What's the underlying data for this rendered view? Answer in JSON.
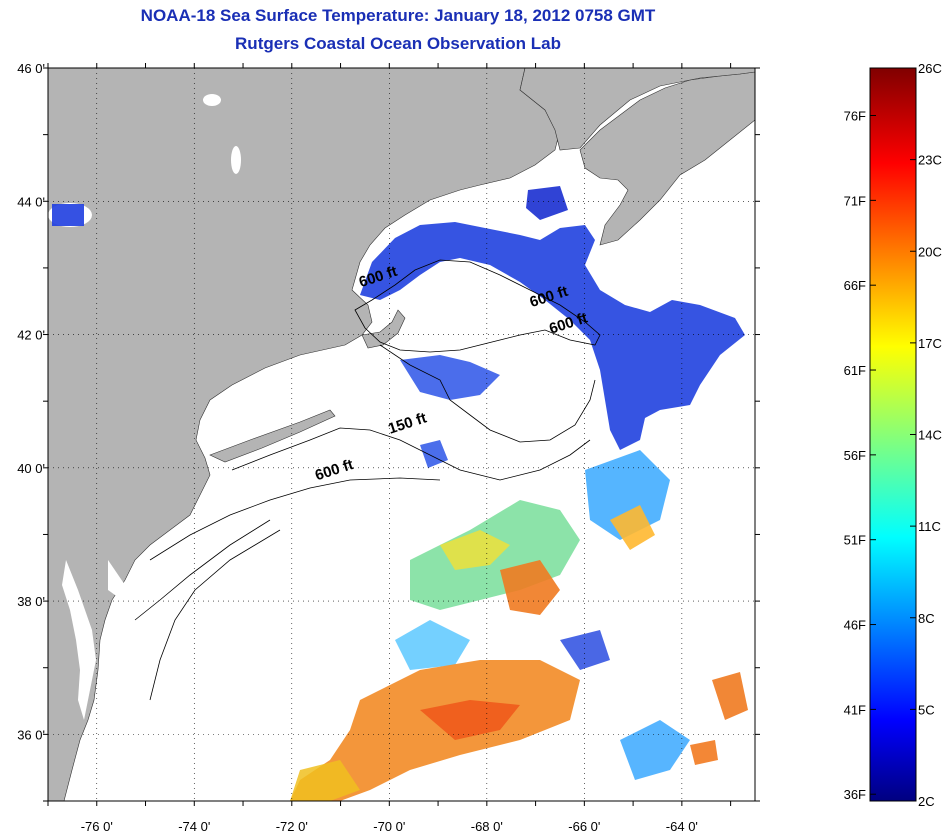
{
  "title": {
    "line1": "NOAA-18 Sea Surface Temperature:  January 18, 2012 0758 GMT",
    "line2": "Rutgers Coastal Ocean Observation Lab"
  },
  "map": {
    "lon_labels": [
      "-76 0'",
      "-74 0'",
      "-72 0'",
      "-70 0'",
      "-68 0'",
      "-66 0'",
      "-64 0'"
    ],
    "lat_labels": [
      "46 0'",
      "44 0'",
      "42 0'",
      "40 0'",
      "38 0'",
      "36 0'"
    ],
    "lon_range": [
      -77.0,
      -62.5
    ],
    "lat_range": [
      35.0,
      46.0
    ],
    "contour_labels": [
      {
        "text": "600 ft",
        "lon": -70.2,
        "lat": 42.8
      },
      {
        "text": "600 ft",
        "lon": -66.7,
        "lat": 42.5
      },
      {
        "text": "600 ft",
        "lon": -66.3,
        "lat": 42.1
      },
      {
        "text": "150 ft",
        "lon": -69.6,
        "lat": 40.6
      },
      {
        "text": "600 ft",
        "lon": -71.1,
        "lat": 39.9
      }
    ],
    "colors": {
      "land": "#b4b4b4",
      "ocean_no_data": "#ffffff",
      "cold_water": "#1f3ee0"
    }
  },
  "colorbar": {
    "fahrenheit_labels": [
      "76F",
      "71F",
      "66F",
      "61F",
      "56F",
      "51F",
      "46F",
      "41F",
      "36F"
    ],
    "celsius_labels": [
      "26C",
      "23C",
      "20C",
      "17C",
      "14C",
      "11C",
      "8C",
      "5C",
      "2C"
    ],
    "range_c": [
      2,
      26
    ],
    "colormap": "jet"
  }
}
